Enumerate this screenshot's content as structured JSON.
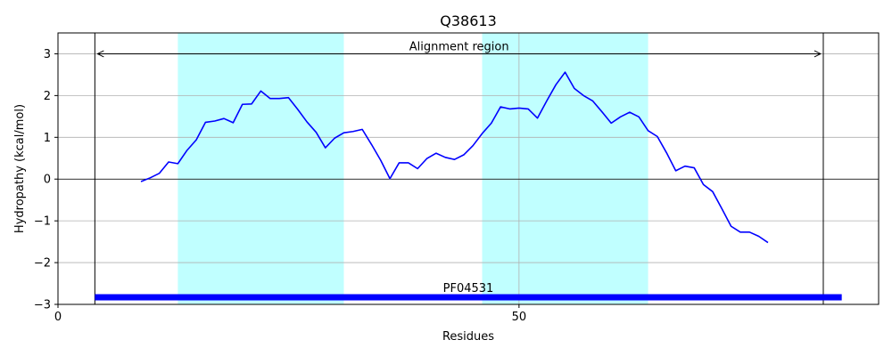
{
  "chart_data": {
    "type": "line",
    "title": "Q38613",
    "xlabel": "Residues",
    "ylabel": "Hydropathy (kcal/mol)",
    "xlim": [
      0,
      89
    ],
    "ylim": [
      -3,
      3.5
    ],
    "xticks": [
      0,
      50
    ],
    "yticks": [
      -3,
      -2,
      -1,
      0,
      1,
      2,
      3
    ],
    "grid": true,
    "line_color": "#0000ff",
    "highlight_color": "#c0ffff",
    "highlight_regions": [
      [
        13,
        31
      ],
      [
        46,
        64
      ]
    ],
    "alignment": {
      "label": "Alignment region",
      "start": 4,
      "end": 83,
      "y": 3.0
    },
    "domain_bar": {
      "label": "PF04531",
      "start": 4,
      "end": 85,
      "y": -2.83,
      "color": "#0000ff"
    },
    "series": [
      {
        "x": [
          9,
          10,
          11,
          12,
          13,
          14,
          15,
          16,
          17,
          18,
          19,
          20,
          21,
          22,
          23,
          24,
          25,
          26,
          27,
          28,
          29,
          30,
          31,
          32,
          33,
          34,
          35,
          36,
          37,
          38,
          39,
          40,
          41,
          42,
          43,
          44,
          45,
          46,
          47,
          48,
          49,
          50,
          51,
          52,
          53,
          54,
          55,
          56,
          57,
          58,
          59,
          60,
          61,
          62,
          63,
          64,
          65,
          66,
          67,
          68,
          69,
          70,
          71,
          72,
          73,
          74,
          75,
          76,
          77
        ],
        "y": [
          -0.06,
          0.03,
          0.14,
          0.41,
          0.37,
          0.69,
          0.94,
          1.36,
          1.39,
          1.45,
          1.35,
          1.79,
          1.8,
          2.11,
          1.93,
          1.93,
          1.95,
          1.67,
          1.37,
          1.12,
          0.75,
          0.98,
          1.11,
          1.14,
          1.19,
          0.83,
          0.45,
          0.01,
          0.39,
          0.39,
          0.25,
          0.49,
          0.62,
          0.52,
          0.47,
          0.58,
          0.8,
          1.09,
          1.34,
          1.73,
          1.68,
          1.7,
          1.68,
          1.46,
          1.87,
          2.26,
          2.56,
          2.17,
          2.0,
          1.87,
          1.61,
          1.34,
          1.49,
          1.6,
          1.49,
          1.16,
          1.02,
          0.63,
          0.2,
          0.31,
          0.27,
          -0.13,
          -0.3,
          -0.71,
          -1.13,
          -1.27,
          -1.27,
          -1.37,
          -1.52
        ]
      }
    ]
  }
}
